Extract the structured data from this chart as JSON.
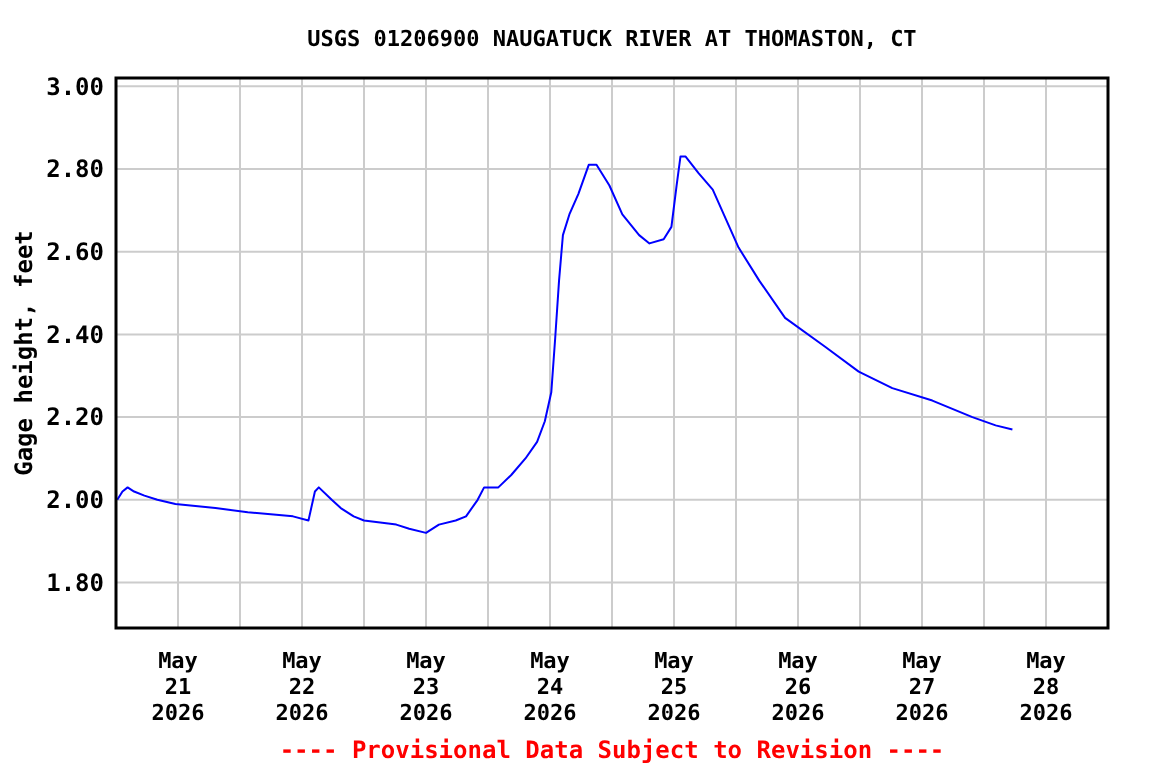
{
  "chart_data": {
    "type": "line",
    "title": "USGS 01206900 NAUGATUCK RIVER AT THOMASTON, CT",
    "ylabel": "Gage height, feet",
    "annotations": [
      "---- Provisional Data Subject to Revision ----"
    ],
    "x": [
      "2026-05-21T00:15",
      "2026-05-21T01:15",
      "2026-05-21T02:15",
      "2026-05-21T03:30",
      "2026-05-21T05:30",
      "2026-05-21T08:00",
      "2026-05-21T11:30",
      "2026-05-21T19:15",
      "2026-05-22T01:30",
      "2026-05-22T10:15",
      "2026-05-22T13:15",
      "2026-05-22T14:30",
      "2026-05-22T15:15",
      "2026-05-22T17:45",
      "2026-05-22T19:30",
      "2026-05-22T22:00",
      "2026-05-23T00:00",
      "2026-05-23T06:15",
      "2026-05-23T08:45",
      "2026-05-23T12:00",
      "2026-05-23T14:30",
      "2026-05-23T17:45",
      "2026-05-23T19:45",
      "2026-05-23T22:00",
      "2026-05-23T23:15",
      "2026-05-24T02:00",
      "2026-05-24T04:30",
      "2026-05-24T07:15",
      "2026-05-24T09:30",
      "2026-05-24T11:00",
      "2026-05-24T12:15",
      "2026-05-24T13:00",
      "2026-05-24T13:45",
      "2026-05-24T14:30",
      "2026-05-24T15:45",
      "2026-05-24T17:30",
      "2026-05-24T19:30",
      "2026-05-24T21:00",
      "2026-05-24T23:30",
      "2026-05-25T02:00",
      "2026-05-25T05:15",
      "2026-05-25T07:15",
      "2026-05-25T10:00",
      "2026-05-25T11:30",
      "2026-05-25T12:30",
      "2026-05-25T13:15",
      "2026-05-25T14:15",
      "2026-05-25T16:45",
      "2026-05-25T19:30",
      "2026-05-25T22:00",
      "2026-05-26T00:30",
      "2026-05-26T04:30",
      "2026-05-26T09:30",
      "2026-05-26T17:15",
      "2026-05-26T23:45",
      "2026-05-27T06:15",
      "2026-05-27T14:00",
      "2026-05-27T21:45",
      "2026-05-28T02:15",
      "2026-05-28T05:30"
    ],
    "series": [
      {
        "color": "#0000ff",
        "values": [
          2.0,
          2.02,
          2.03,
          2.02,
          2.01,
          2.0,
          1.99,
          1.98,
          1.97,
          1.96,
          1.95,
          2.02,
          2.03,
          2.0,
          1.98,
          1.96,
          1.95,
          1.94,
          1.93,
          1.92,
          1.94,
          1.95,
          1.96,
          2.0,
          2.03,
          2.03,
          2.06,
          2.1,
          2.14,
          2.19,
          2.26,
          2.39,
          2.53,
          2.64,
          2.69,
          2.74,
          2.81,
          2.81,
          2.76,
          2.69,
          2.64,
          2.62,
          2.63,
          2.66,
          2.76,
          2.83,
          2.83,
          2.79,
          2.75,
          2.68,
          2.61,
          2.53,
          2.44,
          2.37,
          2.31,
          2.27,
          2.24,
          2.2,
          2.18,
          2.17
        ]
      }
    ],
    "xlim": [
      "2026-05-21T00:00",
      "2026-05-29T00:00"
    ],
    "xticks": [
      {
        "value": "2026-05-21T00:00",
        "label": null
      },
      {
        "value": "2026-05-21T12:00",
        "label": "May\n21\n2026"
      },
      {
        "value": "2026-05-22T00:00",
        "label": null
      },
      {
        "value": "2026-05-22T12:00",
        "label": "May\n22\n2026"
      },
      {
        "value": "2026-05-23T00:00",
        "label": null
      },
      {
        "value": "2026-05-23T12:00",
        "label": "May\n23\n2026"
      },
      {
        "value": "2026-05-24T00:00",
        "label": null
      },
      {
        "value": "2026-05-24T12:00",
        "label": "May\n24\n2026"
      },
      {
        "value": "2026-05-25T00:00",
        "label": null
      },
      {
        "value": "2026-05-25T12:00",
        "label": "May\n25\n2026"
      },
      {
        "value": "2026-05-26T00:00",
        "label": null
      },
      {
        "value": "2026-05-26T12:00",
        "label": "May\n26\n2026"
      },
      {
        "value": "2026-05-27T00:00",
        "label": null
      },
      {
        "value": "2026-05-27T12:00",
        "label": "May\n27\n2026"
      },
      {
        "value": "2026-05-28T00:00",
        "label": null
      },
      {
        "value": "2026-05-28T12:00",
        "label": "May\n28\n2026"
      }
    ],
    "ylim": [
      1.69,
      3.02
    ],
    "yticks": [
      {
        "value": 1.8,
        "label": "1.80"
      },
      {
        "value": 2.0,
        "label": "2.00"
      },
      {
        "value": 2.2,
        "label": "2.20"
      },
      {
        "value": 2.4,
        "label": "2.40"
      },
      {
        "value": 2.6,
        "label": "2.60"
      },
      {
        "value": 2.8,
        "label": "2.80"
      },
      {
        "value": 3.0,
        "label": "3.00"
      }
    ],
    "grid": true,
    "marker": "none",
    "line_style": "solid"
  }
}
